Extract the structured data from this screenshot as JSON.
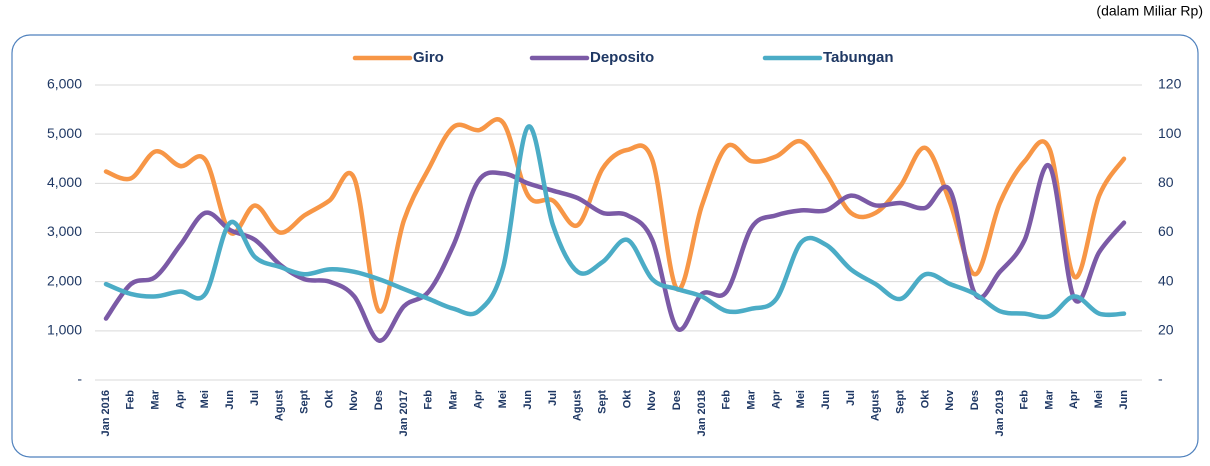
{
  "chart_data": {
    "type": "line",
    "subtitle": "(dalam Miliar Rp)",
    "categories": [
      "Jan 2016",
      "Feb",
      "Mar",
      "Apr",
      "Mei",
      "Jun",
      "Jul",
      "Agust",
      "Sept",
      "Okt",
      "Nov",
      "Des",
      "Jan 2017",
      "Feb",
      "Mar",
      "Apr",
      "Mei",
      "Jun",
      "Jul",
      "Agust",
      "Sept",
      "Okt",
      "Nov",
      "Des",
      "Jan 2018",
      "Feb",
      "Mar",
      "Apr",
      "Mei",
      "Jun",
      "Jul",
      "Agust",
      "Sept",
      "Okt",
      "Nov",
      "Des",
      "Jan 2019",
      "Feb",
      "Mar",
      "Apr",
      "Mei",
      "Jun"
    ],
    "series": [
      {
        "name": "Giro",
        "color": "#f79646",
        "values": [
          4240,
          4100,
          4650,
          4350,
          4480,
          3000,
          3550,
          3000,
          3350,
          3650,
          4100,
          1400,
          3250,
          4300,
          5150,
          5080,
          5230,
          3750,
          3650,
          3150,
          4300,
          4680,
          4480,
          1850,
          3550,
          4750,
          4450,
          4550,
          4850,
          4200,
          3400,
          3400,
          3950,
          4720,
          3600,
          2150,
          3600,
          4450,
          4700,
          2100,
          3750,
          4500
        ]
      },
      {
        "name": "Deposito",
        "color": "#7b5aa6",
        "values": [
          1250,
          1950,
          2100,
          2750,
          3400,
          3050,
          2850,
          2350,
          2050,
          2000,
          1700,
          800,
          1500,
          1800,
          2750,
          4050,
          4200,
          4000,
          3850,
          3700,
          3400,
          3350,
          2850,
          1050,
          1750,
          1800,
          3100,
          3350,
          3450,
          3450,
          3750,
          3550,
          3600,
          3500,
          3850,
          1750,
          2200,
          2850,
          4350,
          1650,
          2600,
          3200
        ]
      },
      {
        "name": "Tabungan",
        "color": "#4bacc6",
        "axis": "y2",
        "values": [
          39,
          35,
          34,
          36,
          35,
          64,
          50,
          46,
          43,
          45,
          44,
          41,
          37,
          33,
          29,
          28,
          46,
          103,
          63,
          44,
          48,
          57,
          41,
          37,
          34,
          28,
          29,
          33,
          56,
          55,
          45,
          39,
          33,
          43,
          39,
          35,
          28,
          27,
          26,
          34,
          27,
          27
        ]
      }
    ],
    "ylim": [
      0,
      6000
    ],
    "yticks": [
      {
        "value": 0,
        "label": "-"
      },
      {
        "value": 1000,
        "label": "1,000"
      },
      {
        "value": 2000,
        "label": "2,000"
      },
      {
        "value": 3000,
        "label": "3,000"
      },
      {
        "value": 4000,
        "label": "4,000"
      },
      {
        "value": 5000,
        "label": "5,000"
      },
      {
        "value": 6000,
        "label": "6,000"
      }
    ],
    "y2lim": [
      0,
      120
    ],
    "y2ticks": [
      {
        "value": 0,
        "label": "-"
      },
      20,
      40,
      60,
      80,
      100,
      120
    ],
    "grid": true,
    "legend": "top"
  }
}
